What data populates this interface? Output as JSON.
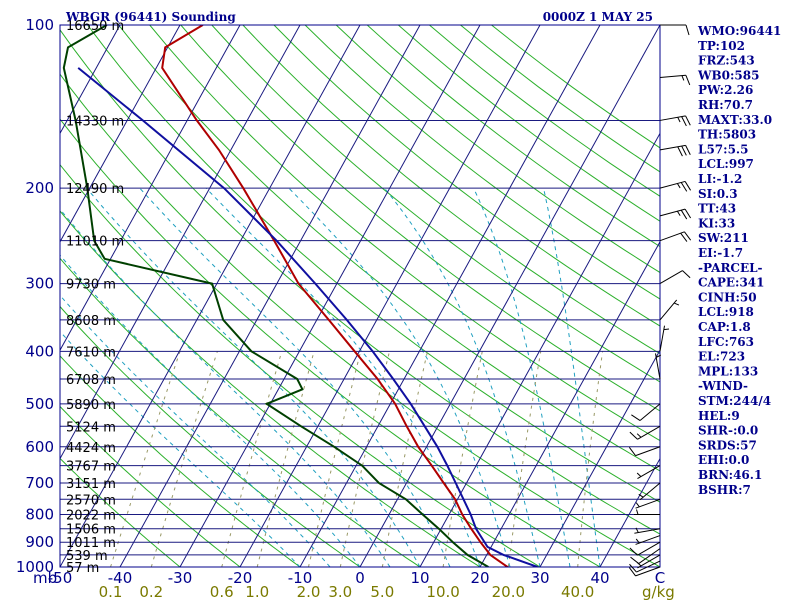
{
  "header": {
    "station": "WBGR (96441) Sounding",
    "time": "0000Z  1 MAY 25"
  },
  "indices": [
    "WMO:96441",
    "TP:102",
    "FRZ:543",
    "WB0:585",
    "PW:2.26",
    "RH:70.7",
    "MAXT:33.0",
    "TH:5803",
    "L57:5.5",
    "LCL:997",
    "LI:-1.2",
    "SI:0.3",
    "TT:43",
    "KI:33",
    "SW:211",
    "EI:-1.7",
    "-PARCEL-",
    "CAPE:341",
    "CINH:50",
    "LCL:918",
    "CAP:1.8",
    "LFC:763",
    "EL:723",
    "MPL:133",
    "-WIND-",
    "STM:244/4",
    "HEL:9",
    "SHR-:0.0",
    "SRDS:57",
    "EHI:0.0",
    "BRN:46.1",
    "BSHR:7"
  ],
  "chart_data": {
    "type": "line",
    "title": "WBGR (96441) Sounding",
    "subtitle": "0000Z  1 MAY 25",
    "y_axis": {
      "label": "mb",
      "scale": "log",
      "range": [
        1000,
        100
      ],
      "ticks": [
        100,
        200,
        300,
        400,
        500,
        600,
        700,
        800,
        900,
        1000
      ],
      "tick_labels": [
        "100",
        "200",
        "300",
        "400",
        "500",
        "600",
        "700",
        "800",
        "900",
        "1000"
      ]
    },
    "x_axis": {
      "label": "",
      "range": [
        -50,
        50
      ],
      "ticks": [
        -50,
        -40,
        -30,
        -20,
        -10,
        0,
        10,
        20,
        30,
        40,
        50
      ],
      "tick_labels": [
        "-50",
        "-40",
        "-30",
        "-20",
        "-10",
        "0",
        "10",
        "20",
        "30",
        "40",
        "C"
      ]
    },
    "mixing_ratio_axis": {
      "label": "g/kg",
      "ticks": [
        0.1,
        0.2,
        0.6,
        1.0,
        2.0,
        3.0,
        5.0,
        10.0,
        20.0,
        40.0
      ],
      "tick_labels": [
        "0.1",
        "0.2",
        "0.6",
        "1.0",
        "2.0",
        "3.0",
        "5.0",
        "10.0",
        "20.0",
        "40.0"
      ]
    },
    "height_labels": [
      {
        "p": 100,
        "text": "16650 m"
      },
      {
        "p": 150,
        "text": "14330 m"
      },
      {
        "p": 200,
        "text": "12490 m"
      },
      {
        "p": 250,
        "text": "11010 m"
      },
      {
        "p": 300,
        "text": "9730 m"
      },
      {
        "p": 350,
        "text": "8608 m"
      },
      {
        "p": 400,
        "text": "7610 m"
      },
      {
        "p": 450,
        "text": "6708 m"
      },
      {
        "p": 500,
        "text": "5890 m"
      },
      {
        "p": 550,
        "text": "5124 m"
      },
      {
        "p": 600,
        "text": "4424 m"
      },
      {
        "p": 650,
        "text": "3767 m"
      },
      {
        "p": 700,
        "text": "3151 m"
      },
      {
        "p": 750,
        "text": "2570 m"
      },
      {
        "p": 800,
        "text": "2022 m"
      },
      {
        "p": 850,
        "text": "1506 m"
      },
      {
        "p": 900,
        "text": "1011 m"
      },
      {
        "p": 950,
        "text": "539 m"
      },
      {
        "p": 1000,
        "text": "57 m"
      }
    ],
    "series": [
      {
        "role": "temperature",
        "color": "#b00000",
        "points": [
          {
            "p": 1000,
            "t": 24.6
          },
          {
            "p": 990,
            "t": 23.8
          },
          {
            "p": 950,
            "t": 20.6
          },
          {
            "p": 900,
            "t": 17.8
          },
          {
            "p": 850,
            "t": 15.0
          },
          {
            "p": 800,
            "t": 12.2
          },
          {
            "p": 750,
            "t": 9.6
          },
          {
            "p": 700,
            "t": 6.2
          },
          {
            "p": 650,
            "t": 2.6
          },
          {
            "p": 600,
            "t": -1.4
          },
          {
            "p": 550,
            "t": -5.2
          },
          {
            "p": 500,
            "t": -9.2
          },
          {
            "p": 450,
            "t": -14.4
          },
          {
            "p": 400,
            "t": -20.8
          },
          {
            "p": 350,
            "t": -28.0
          },
          {
            "p": 300,
            "t": -36.4
          },
          {
            "p": 250,
            "t": -44.4
          },
          {
            "p": 200,
            "t": -54.4
          },
          {
            "p": 170,
            "t": -62.0
          },
          {
            "p": 150,
            "t": -68.4
          },
          {
            "p": 120,
            "t": -79.0
          },
          {
            "p": 110,
            "t": -80.4
          },
          {
            "p": 100,
            "t": -76.2
          }
        ]
      },
      {
        "role": "dewpoint",
        "color": "#004000",
        "points": [
          {
            "p": 1000,
            "t": 21.4
          },
          {
            "p": 950,
            "t": 16.8
          },
          {
            "p": 900,
            "t": 13.2
          },
          {
            "p": 850,
            "t": 9.6
          },
          {
            "p": 800,
            "t": 5.6
          },
          {
            "p": 750,
            "t": 1.4
          },
          {
            "p": 700,
            "t": -4.6
          },
          {
            "p": 650,
            "t": -9.0
          },
          {
            "p": 600,
            "t": -15.4
          },
          {
            "p": 550,
            "t": -22.8
          },
          {
            "p": 500,
            "t": -30.6
          },
          {
            "p": 470,
            "t": -26.0
          },
          {
            "p": 450,
            "t": -27.8
          },
          {
            "p": 400,
            "t": -38.0
          },
          {
            "p": 350,
            "t": -45.6
          },
          {
            "p": 300,
            "t": -50.8
          },
          {
            "p": 270,
            "t": -71.0
          },
          {
            "p": 250,
            "t": -74.4
          },
          {
            "p": 200,
            "t": -80.4
          },
          {
            "p": 150,
            "t": -88.6
          },
          {
            "p": 120,
            "t": -95.4
          },
          {
            "p": 110,
            "t": -96.6
          },
          {
            "p": 100,
            "t": -92.2
          }
        ]
      },
      {
        "role": "parcel",
        "color": "#1010a0",
        "points": [
          {
            "p": 1000,
            "t": 29.6
          },
          {
            "p": 950,
            "t": 22.8
          },
          {
            "p": 918,
            "t": 19.4
          },
          {
            "p": 850,
            "t": 15.8
          },
          {
            "p": 800,
            "t": 13.6
          },
          {
            "p": 750,
            "t": 11.0
          },
          {
            "p": 700,
            "t": 8.2
          },
          {
            "p": 650,
            "t": 5.2
          },
          {
            "p": 600,
            "t": 1.8
          },
          {
            "p": 550,
            "t": -2.2
          },
          {
            "p": 500,
            "t": -6.6
          },
          {
            "p": 450,
            "t": -11.8
          },
          {
            "p": 400,
            "t": -17.8
          },
          {
            "p": 350,
            "t": -25.0
          },
          {
            "p": 300,
            "t": -33.6
          },
          {
            "p": 250,
            "t": -44.0
          },
          {
            "p": 200,
            "t": -57.6
          },
          {
            "p": 150,
            "t": -77.4
          },
          {
            "p": 120,
            "t": -93.0
          }
        ]
      }
    ],
    "wind_barbs": [
      {
        "p": 1000,
        "dir": 250,
        "kt": 10
      },
      {
        "p": 975,
        "dir": 245,
        "kt": 10
      },
      {
        "p": 950,
        "dir": 240,
        "kt": 5
      },
      {
        "p": 925,
        "dir": 235,
        "kt": 10
      },
      {
        "p": 900,
        "dir": 240,
        "kt": 10
      },
      {
        "p": 875,
        "dir": 250,
        "kt": 5
      },
      {
        "p": 850,
        "dir": 260,
        "kt": 5
      },
      {
        "p": 800,
        "dir": 270,
        "kt": 5
      },
      {
        "p": 750,
        "dir": 250,
        "kt": 5
      },
      {
        "p": 700,
        "dir": 230,
        "kt": 5
      },
      {
        "p": 650,
        "dir": 240,
        "kt": 5
      },
      {
        "p": 600,
        "dir": 250,
        "kt": 10
      },
      {
        "p": 550,
        "dir": 240,
        "kt": 15
      },
      {
        "p": 500,
        "dir": 230,
        "kt": 10
      },
      {
        "p": 450,
        "dir": 350,
        "kt": 5
      },
      {
        "p": 400,
        "dir": 10,
        "kt": 5
      },
      {
        "p": 350,
        "dir": 40,
        "kt": 5
      },
      {
        "p": 300,
        "dir": 60,
        "kt": 10
      },
      {
        "p": 250,
        "dir": 70,
        "kt": 20
      },
      {
        "p": 225,
        "dir": 75,
        "kt": 25
      },
      {
        "p": 200,
        "dir": 75,
        "kt": 25
      },
      {
        "p": 170,
        "dir": 80,
        "kt": 30
      },
      {
        "p": 150,
        "dir": 80,
        "kt": 25
      },
      {
        "p": 125,
        "dir": 85,
        "kt": 15
      },
      {
        "p": 100,
        "dir": 90,
        "kt": 10
      }
    ],
    "background_lines": {
      "isotherm_color": "#1a1a80",
      "isobar_color": "#1a1a80",
      "dry_adiabat_color": "#2cb02c",
      "moist_adiabat_color": "#20a0c0",
      "mixing_ratio_color": "#999966"
    },
    "grid": true
  }
}
